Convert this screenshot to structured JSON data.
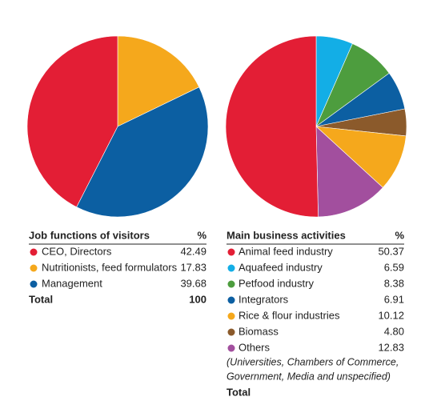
{
  "chart_data": [
    {
      "type": "pie",
      "title": "Job functions of visitors",
      "unit": "%",
      "categories": [
        "CEO, Directors",
        "Nutritionists, feed formulators",
        "Management"
      ],
      "values": [
        42.49,
        17.83,
        39.68
      ],
      "colors": [
        "#e31e35",
        "#f5a81c",
        "#0c5fa2"
      ],
      "draw_order": [
        1,
        2,
        0
      ],
      "total_label": "Total",
      "total": 100
    },
    {
      "type": "pie",
      "title": "Main business activities",
      "unit": "%",
      "categories": [
        "Animal feed industry",
        "Aquafeed industry",
        "Petfood industry",
        "Integrators",
        "Rice & flour industries",
        "Biomass",
        "Others"
      ],
      "values": [
        50.37,
        6.59,
        8.38,
        6.91,
        10.12,
        4.8,
        12.83
      ],
      "value_labels": [
        "50.37",
        "6.59",
        "8.38",
        "6.91",
        "10.12",
        "4.80",
        "12.83"
      ],
      "colors": [
        "#e31e35",
        "#13aee6",
        "#4d9d3e",
        "#0c5fa2",
        "#f5a81c",
        "#8b5a2b",
        "#a24f9e"
      ],
      "draw_order": [
        1,
        2,
        3,
        5,
        4,
        6,
        0
      ],
      "note": [
        "(Universities, Chambers of Commerce,",
        "Government, Media and unspecified)"
      ],
      "total_label": "Total"
    }
  ]
}
